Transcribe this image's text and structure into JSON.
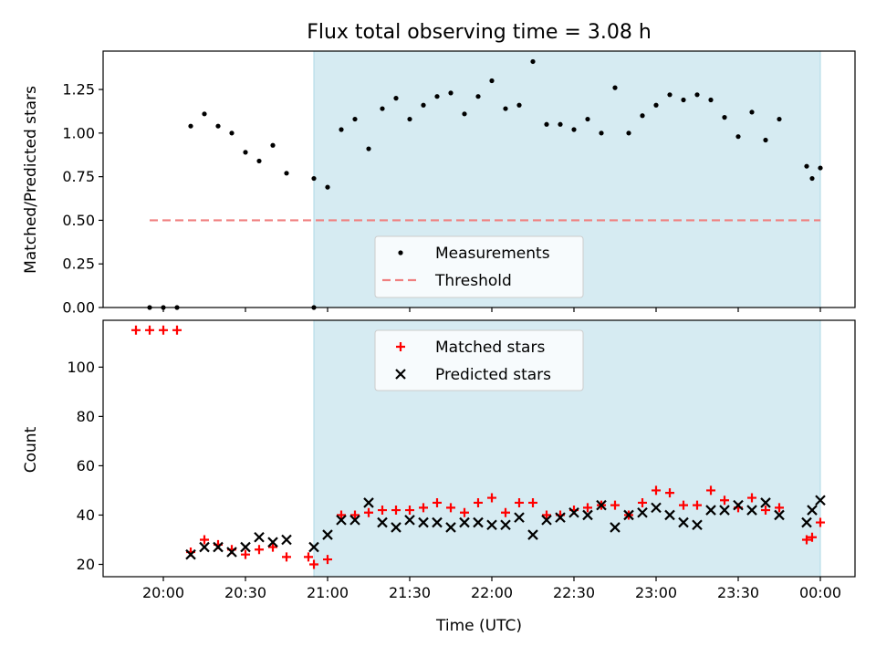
{
  "title": "Flux total observing time = 3.08 h",
  "colors": {
    "shade": "#add8e6",
    "measurement": "#000000",
    "threshold": "#f08080",
    "matched": "#ff0000",
    "predicted": "#000000"
  },
  "chart_data": [
    {
      "type": "scatter",
      "ylabel": "Matched/Predicted stars",
      "ylim": [
        0,
        1.47
      ],
      "yticks": [
        "0.00",
        "0.25",
        "0.50",
        "0.75",
        "1.00",
        "1.25"
      ],
      "shaded_interval": [
        "20:55",
        "00:00"
      ],
      "legend": {
        "position": "lower-center",
        "entries": [
          "Measurements",
          "Threshold"
        ]
      },
      "threshold": {
        "name": "Threshold",
        "value": 0.5,
        "x_start": "19:55",
        "x_end": "00:00"
      },
      "series": [
        {
          "name": "Measurements",
          "points": [
            [
              "19:55",
              0.0
            ],
            [
              "20:00",
              0.0
            ],
            [
              "20:05",
              0.0
            ],
            [
              "20:10",
              1.04
            ],
            [
              "20:15",
              1.11
            ],
            [
              "20:20",
              1.04
            ],
            [
              "20:25",
              1.0
            ],
            [
              "20:30",
              0.89
            ],
            [
              "20:35",
              0.84
            ],
            [
              "20:40",
              0.93
            ],
            [
              "20:45",
              0.77
            ],
            [
              "20:55",
              0.0
            ],
            [
              "20:55",
              0.74
            ],
            [
              "21:00",
              0.69
            ],
            [
              "21:05",
              1.02
            ],
            [
              "21:10",
              1.08
            ],
            [
              "21:15",
              0.91
            ],
            [
              "21:20",
              1.14
            ],
            [
              "21:25",
              1.2
            ],
            [
              "21:30",
              1.08
            ],
            [
              "21:35",
              1.16
            ],
            [
              "21:40",
              1.21
            ],
            [
              "21:45",
              1.23
            ],
            [
              "21:50",
              1.11
            ],
            [
              "21:55",
              1.21
            ],
            [
              "22:00",
              1.3
            ],
            [
              "22:05",
              1.14
            ],
            [
              "22:10",
              1.16
            ],
            [
              "22:15",
              1.41
            ],
            [
              "22:20",
              1.05
            ],
            [
              "22:25",
              1.05
            ],
            [
              "22:30",
              1.02
            ],
            [
              "22:35",
              1.08
            ],
            [
              "22:40",
              1.0
            ],
            [
              "22:45",
              1.26
            ],
            [
              "22:50",
              1.0
            ],
            [
              "22:55",
              1.1
            ],
            [
              "23:00",
              1.16
            ],
            [
              "23:05",
              1.22
            ],
            [
              "23:10",
              1.19
            ],
            [
              "23:15",
              1.22
            ],
            [
              "23:20",
              1.19
            ],
            [
              "23:25",
              1.09
            ],
            [
              "23:30",
              0.98
            ],
            [
              "23:35",
              1.12
            ],
            [
              "23:40",
              0.96
            ],
            [
              "23:45",
              1.08
            ],
            [
              "23:55",
              0.81
            ],
            [
              "23:57",
              0.74
            ],
            [
              "00:00",
              0.8
            ]
          ]
        }
      ]
    },
    {
      "type": "scatter",
      "xlabel": "Time (UTC)",
      "ylabel": "Count",
      "ylim": [
        15,
        119
      ],
      "yticks": [
        "20",
        "40",
        "60",
        "80",
        "100"
      ],
      "xticks": [
        "20:00",
        "20:30",
        "21:00",
        "21:30",
        "22:00",
        "22:30",
        "23:00",
        "23:30",
        "00:00"
      ],
      "shaded_interval": [
        "20:55",
        "00:00"
      ],
      "legend": {
        "position": "upper-center",
        "entries": [
          "Matched stars",
          "Predicted stars"
        ]
      },
      "series": [
        {
          "name": "Matched stars",
          "points": [
            [
              "19:55",
              115
            ],
            [
              "20:00",
              115
            ],
            [
              "20:05",
              115
            ],
            [
              "19:50",
              115
            ],
            [
              "20:10",
              25
            ],
            [
              "20:15",
              30
            ],
            [
              "20:20",
              28
            ],
            [
              "20:25",
              26
            ],
            [
              "20:30",
              24
            ],
            [
              "20:35",
              26
            ],
            [
              "20:40",
              27
            ],
            [
              "20:45",
              23
            ],
            [
              "20:53",
              23
            ],
            [
              "20:55",
              20
            ],
            [
              "21:00",
              22
            ],
            [
              "21:05",
              40
            ],
            [
              "21:10",
              40
            ],
            [
              "21:15",
              41
            ],
            [
              "21:20",
              42
            ],
            [
              "21:25",
              42
            ],
            [
              "21:30",
              42
            ],
            [
              "21:35",
              43
            ],
            [
              "21:40",
              45
            ],
            [
              "21:45",
              43
            ],
            [
              "21:50",
              41
            ],
            [
              "21:55",
              45
            ],
            [
              "22:00",
              47
            ],
            [
              "22:05",
              41
            ],
            [
              "22:10",
              45
            ],
            [
              "22:15",
              45
            ],
            [
              "22:20",
              40
            ],
            [
              "22:25",
              40
            ],
            [
              "22:30",
              42
            ],
            [
              "22:35",
              43
            ],
            [
              "22:40",
              44
            ],
            [
              "22:45",
              44
            ],
            [
              "22:50",
              40
            ],
            [
              "22:55",
              45
            ],
            [
              "23:00",
              50
            ],
            [
              "23:05",
              49
            ],
            [
              "23:10",
              44
            ],
            [
              "23:15",
              44
            ],
            [
              "23:20",
              50
            ],
            [
              "23:25",
              46
            ],
            [
              "23:30",
              43
            ],
            [
              "23:35",
              47
            ],
            [
              "23:40",
              42
            ],
            [
              "23:45",
              43
            ],
            [
              "23:55",
              30
            ],
            [
              "23:57",
              31
            ],
            [
              "00:00",
              37
            ]
          ]
        },
        {
          "name": "Predicted stars",
          "points": [
            [
              "20:10",
              24
            ],
            [
              "20:15",
              27
            ],
            [
              "20:20",
              27
            ],
            [
              "20:25",
              25
            ],
            [
              "20:30",
              27
            ],
            [
              "20:35",
              31
            ],
            [
              "20:40",
              29
            ],
            [
              "20:45",
              30
            ],
            [
              "20:55",
              27
            ],
            [
              "21:00",
              32
            ],
            [
              "21:05",
              38
            ],
            [
              "21:10",
              38
            ],
            [
              "21:15",
              45
            ],
            [
              "21:20",
              37
            ],
            [
              "21:25",
              35
            ],
            [
              "21:30",
              38
            ],
            [
              "21:35",
              37
            ],
            [
              "21:40",
              37
            ],
            [
              "21:45",
              35
            ],
            [
              "21:50",
              37
            ],
            [
              "21:55",
              37
            ],
            [
              "22:00",
              36
            ],
            [
              "22:05",
              36
            ],
            [
              "22:10",
              39
            ],
            [
              "22:15",
              32
            ],
            [
              "22:20",
              38
            ],
            [
              "22:25",
              39
            ],
            [
              "22:30",
              41
            ],
            [
              "22:35",
              40
            ],
            [
              "22:40",
              44
            ],
            [
              "22:45",
              35
            ],
            [
              "22:50",
              40
            ],
            [
              "22:55",
              41
            ],
            [
              "23:00",
              43
            ],
            [
              "23:05",
              40
            ],
            [
              "23:10",
              37
            ],
            [
              "23:15",
              36
            ],
            [
              "23:20",
              42
            ],
            [
              "23:25",
              42
            ],
            [
              "23:30",
              44
            ],
            [
              "23:35",
              42
            ],
            [
              "23:40",
              45
            ],
            [
              "23:45",
              40
            ],
            [
              "23:55",
              37
            ],
            [
              "23:57",
              42
            ],
            [
              "00:00",
              46
            ]
          ]
        }
      ]
    }
  ]
}
